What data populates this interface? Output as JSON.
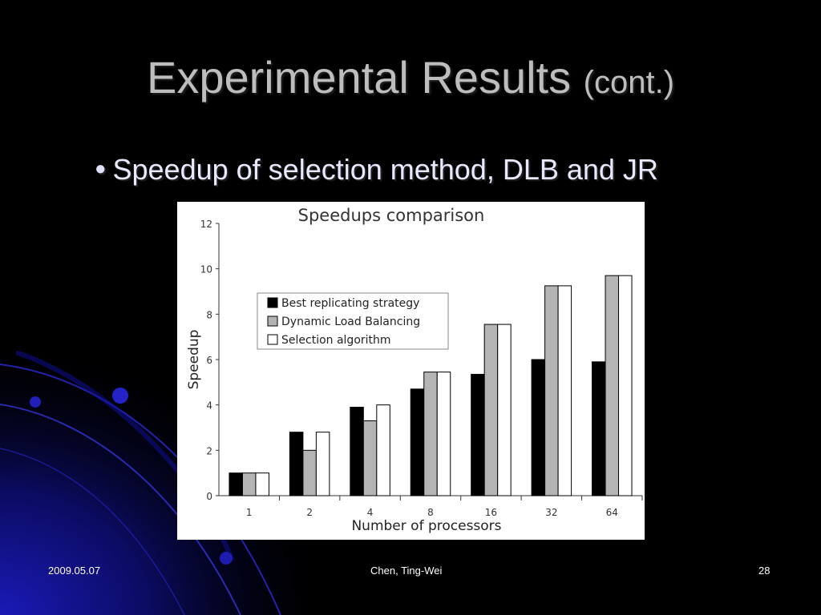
{
  "slide": {
    "title": "Experimental Results",
    "title_suffix": "(cont.)",
    "bullet": "Speedup of selection method, DLB and JR"
  },
  "footer": {
    "date": "2009.05.07",
    "author": "Chen, Ting-Wei",
    "page": "28"
  },
  "colors": {
    "background": "#000000",
    "title": "#bdbdbd",
    "accent_blue": "#1a1aa8"
  },
  "chart_data": {
    "type": "bar",
    "title": "Speedups comparison",
    "xlabel": "Number of processors",
    "ylabel": "Speedup",
    "categories": [
      "1",
      "2",
      "4",
      "8",
      "16",
      "32",
      "64"
    ],
    "ylim": [
      0,
      12
    ],
    "yticks": [
      0,
      2,
      4,
      6,
      8,
      10,
      12
    ],
    "grid": false,
    "legend_position": "upper-left",
    "series": [
      {
        "name": "Best replicating strategy",
        "color": "#000000",
        "values": [
          1.0,
          2.8,
          3.9,
          4.7,
          5.35,
          6.0,
          5.9
        ]
      },
      {
        "name": "Dynamic Load Balancing",
        "color": "#b4b4b4",
        "values": [
          1.0,
          2.0,
          3.3,
          5.45,
          7.55,
          9.25,
          9.7
        ]
      },
      {
        "name": "Selection algorithm",
        "color": "#ffffff",
        "values": [
          1.0,
          2.8,
          4.0,
          5.45,
          7.55,
          9.25,
          9.7
        ]
      }
    ]
  }
}
